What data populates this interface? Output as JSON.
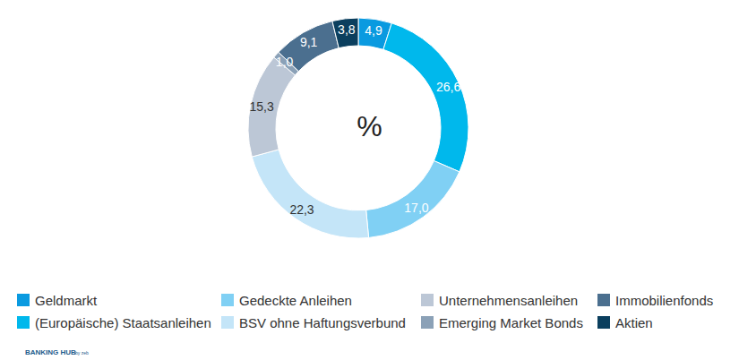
{
  "chart_data": {
    "type": "donut",
    "center_label": "%",
    "categories": [
      "Geldmarkt",
      "(Europäische) Staatsanleihen",
      "Gedeckte Anleihen",
      "BSV ohne Haftungsverbund",
      "Unternehmensanleihen",
      "Emerging Market Bonds",
      "Immobilienfonds",
      "Aktien"
    ],
    "values": [
      4.9,
      26.6,
      17.0,
      22.3,
      15.3,
      1.0,
      9.1,
      3.8
    ],
    "value_labels": [
      "4,9",
      "26,6",
      "17,0",
      "22,3",
      "15,3",
      "1,0",
      "9,1",
      "3,8"
    ],
    "colors": [
      "#0a9ae0",
      "#00b8ec",
      "#80d0f4",
      "#c4e5f8",
      "#bcc7d6",
      "#8ba1b7",
      "#4b6f8f",
      "#0b3f5e"
    ],
    "data_labels": true,
    "legend": "bottom"
  },
  "footer": {
    "brand": "BANKING HUB",
    "by": "by zeb"
  }
}
